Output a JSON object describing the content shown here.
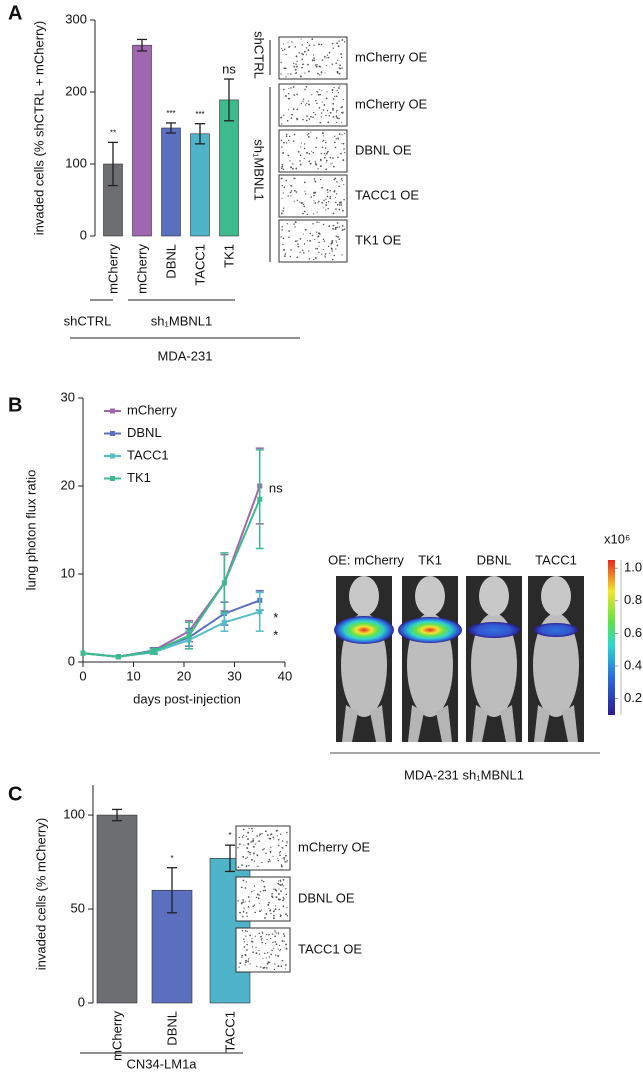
{
  "panel_labels": [
    "A",
    "B",
    "C"
  ],
  "chart_data": [
    {
      "type": "bar",
      "ylabel": "invaded cells (% shCTRL + mCherry)",
      "categories": [
        "mCherry",
        "mCherry",
        "DBNL",
        "TACC1",
        "TK1"
      ],
      "values": [
        100,
        265,
        150,
        142,
        189
      ],
      "errors": [
        30,
        8,
        7,
        14,
        29
      ],
      "colors": [
        "#6d6e71",
        "#a066b0",
        "#5b6fbf",
        "#4fb3c9",
        "#3dbb8c"
      ],
      "annotations": [
        "**",
        null,
        "***",
        "***",
        "ns"
      ],
      "ylim": [
        0,
        300
      ],
      "yticks": [
        0,
        100,
        200,
        300
      ],
      "groups": [
        "shCTRL",
        "sh₁MBNL1"
      ],
      "group_label": "MDA-231"
    },
    {
      "type": "line",
      "xlabel": "days post-injection",
      "ylabel": "lung photon flux ratio",
      "x": [
        0,
        7,
        14,
        21,
        28,
        35
      ],
      "xlim": [
        0,
        40
      ],
      "xticks": [
        0,
        10,
        20,
        30,
        40
      ],
      "ylim": [
        0,
        30
      ],
      "yticks": [
        0,
        10,
        20,
        30
      ],
      "legend": "top-left",
      "series": [
        {
          "name": "mCherry",
          "color": "#a066b0",
          "values": [
            1,
            0.6,
            1.3,
            3.5,
            9,
            20
          ],
          "errors": [
            0,
            0,
            0.3,
            1.2,
            3.2,
            4.3
          ],
          "annotation": null
        },
        {
          "name": "DBNL",
          "color": "#5b6fbf",
          "values": [
            1,
            0.6,
            1.3,
            2.8,
            5.5,
            7
          ],
          "errors": [
            0,
            0,
            0.3,
            1,
            1.3,
            1.1
          ],
          "annotation": "*"
        },
        {
          "name": "TACC1",
          "color": "#55bfc9",
          "values": [
            1,
            0.6,
            1.1,
            2.5,
            4.5,
            5.7
          ],
          "errors": [
            0,
            0,
            0.2,
            1,
            1,
            2.2
          ],
          "annotation": "*"
        },
        {
          "name": "TK1",
          "color": "#3dbb8c",
          "values": [
            1,
            0.6,
            1.2,
            3,
            9,
            18.5
          ],
          "errors": [
            0,
            0,
            0.3,
            1.5,
            3.4,
            5.6
          ],
          "annotation": "ns"
        }
      ]
    },
    {
      "type": "bar",
      "ylabel": "invaded cells (% mCherry)",
      "categories": [
        "mCherry",
        "DBNL",
        "TACC1"
      ],
      "values": [
        100,
        60,
        77
      ],
      "errors": [
        3,
        12,
        7
      ],
      "colors": [
        "#6d6e71",
        "#5b6fbf",
        "#4fb3c9"
      ],
      "annotations": [
        null,
        "*",
        "*"
      ],
      "ylim": [
        0,
        116
      ],
      "yticks": [
        0,
        50,
        100
      ],
      "groups": [],
      "group_label": "CN34-LM1a"
    }
  ],
  "invasion_images_a": {
    "row_groups": [
      "shCTRL",
      "sh₁MBNL1"
    ],
    "labels": [
      "mCherry OE",
      "mCherry OE",
      "DBNL OE",
      "TACC1 OE",
      "TK1 OE"
    ]
  },
  "imaging_b": {
    "labels": [
      "OE: mCherry",
      "TK1",
      "DBNL",
      "TACC1"
    ],
    "scale_label": "x10⁶",
    "scale_lim": [
      0.1,
      1.05
    ],
    "scale_ticks": [
      {
        "value": 1,
        "label": "1.0"
      },
      0.8,
      0.6,
      0.4,
      0.2
    ],
    "caption": "MDA-231 sh₁MBNL1"
  },
  "invasion_images_c": {
    "labels": [
      "mCherry OE",
      "DBNL OE",
      "TACC1 OE"
    ]
  }
}
